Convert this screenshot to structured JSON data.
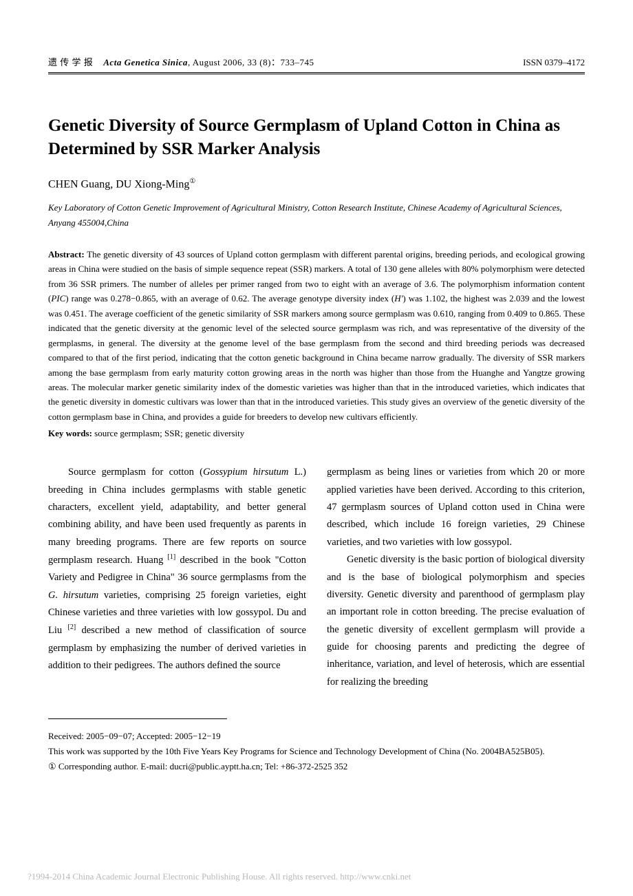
{
  "header": {
    "journal_cn": "遗  传  学  报",
    "journal_en": "Acta Genetica Sinica",
    "issue_info": ",   August  2006,  33 (8)：733–745",
    "issn": "ISSN 0379–4172"
  },
  "title": "Genetic Diversity of Source Germplasm of Upland Cotton in China as Determined by SSR Marker Analysis",
  "authors": "CHEN Guang, DU Xiong-Ming",
  "author_sup": "①",
  "affiliation": "Key Laboratory of Cotton Genetic Improvement of Agricultural Ministry, Cotton Research Institute, Chinese Academy of Agricultural Sciences, Anyang 455004,China",
  "abstract_label": "Abstract:",
  "abstract_text_1": " The genetic diversity of 43 sources of Upland cotton germplasm with different parental origins, breeding periods, and ecological growing areas in China were studied on the basis of simple sequence repeat (SSR) markers. A total of 130 gene alleles with 80% polymorphism were detected from 36 SSR primers. The number of alleles per primer ranged from two to eight with an average of 3.6. The polymorphism information content (",
  "abstract_pic": "PIC",
  "abstract_text_2": ") range was 0.278−0.865, with an average of 0.62. The average genotype diversity index (",
  "abstract_h": "H'",
  "abstract_text_3": ") was 1.102, the highest was 2.039 and the lowest was 0.451. The average coefficient of the genetic similarity of SSR markers among source germplasm was 0.610, ranging from 0.409 to 0.865. These indicated that the genetic diversity at the genomic level of the selected source germplasm was rich, and was representative of the diversity of the germplasms, in general. The diversity at the genome level of the base germplasm from the second and third breeding periods was decreased compared to that of the first period, indicating that the cotton genetic background in China became narrow gradually. The diversity of SSR markers among the base germplasm from early maturity cotton growing areas in the north was higher than those from the Huanghe and Yangtze growing areas. The molecular marker genetic similarity index of the domestic varieties was higher than that in the introduced varieties, which indicates that the genetic diversity in domestic cultivars was lower than that in the introduced varieties. This study gives an overview of the genetic diversity of the cotton germplasm base in China, and provides a guide for breeders to develop new cultivars efficiently.",
  "keywords_label": "Key words:",
  "keywords_text": " source germplasm; SSR; genetic diversity",
  "body": {
    "col1_p1_a": "Source germplasm for cotton (",
    "col1_p1_species": "Gossypium hirsutum",
    "col1_p1_b": " L.) breeding in China includes germplasms with stable genetic characters, excellent yield, adaptability, and better general combining ability, and have been used frequently as parents in many breeding programs. There are few reports on source germplasm research. Huang ",
    "col1_ref1": "[1]",
    "col1_p1_c": " described in the book \"Cotton Variety and Pedigree in China\" 36 source germplasms from the ",
    "col1_p1_species2": "G. hirsutum",
    "col1_p1_d": " varieties, comprising 25 foreign varieties, eight Chinese varieties and three varieties with low gossypol. Du and Liu ",
    "col1_ref2": "[2]",
    "col1_p1_e": " described a new method of classification of source germplasm by emphasizing the number of derived varieties in addition to their pedigrees. The authors defined the source",
    "col2_p1": "germplasm as being lines or varieties from which 20 or more applied varieties have been derived. According to this criterion, 47 germplasm sources of Upland cotton used in China were described, which include 16 foreign varieties, 29 Chinese varieties, and two varieties with low gossypol.",
    "col2_p2": "Genetic diversity is the basic portion of biological diversity and is the base of biological polymorphism and species diversity. Genetic diversity and parenthood of germplasm play an important role in cotton breeding. The precise evaluation of the genetic diversity of excellent germplasm will provide a guide for choosing parents and predicting the degree of inheritance, variation, and level of heterosis, which are essential for realizing the breeding"
  },
  "footnotes": {
    "received": "Received: 2005−09−07; Accepted: 2005−12−19",
    "funding": "This work was supported by the 10th Five Years Key Programs for Science and Technology Development of China (No. 2004BA525B05).",
    "corr_sup": "①",
    "corresponding": "   Corresponding author. E-mail: ducri@public.ayptt.ha.cn; Tel: +86-372-2525 352"
  },
  "watermark": "?1994-2014 China Academic Journal Electronic Publishing House. All rights reserved.    http://www.cnki.net",
  "colors": {
    "text": "#000000",
    "background": "#ffffff",
    "watermark": "#b8b8b8"
  },
  "typography": {
    "title_fontsize": 25,
    "body_fontsize": 14.5,
    "abstract_fontsize": 13,
    "header_fontsize": 13,
    "font_family": "Times New Roman"
  }
}
